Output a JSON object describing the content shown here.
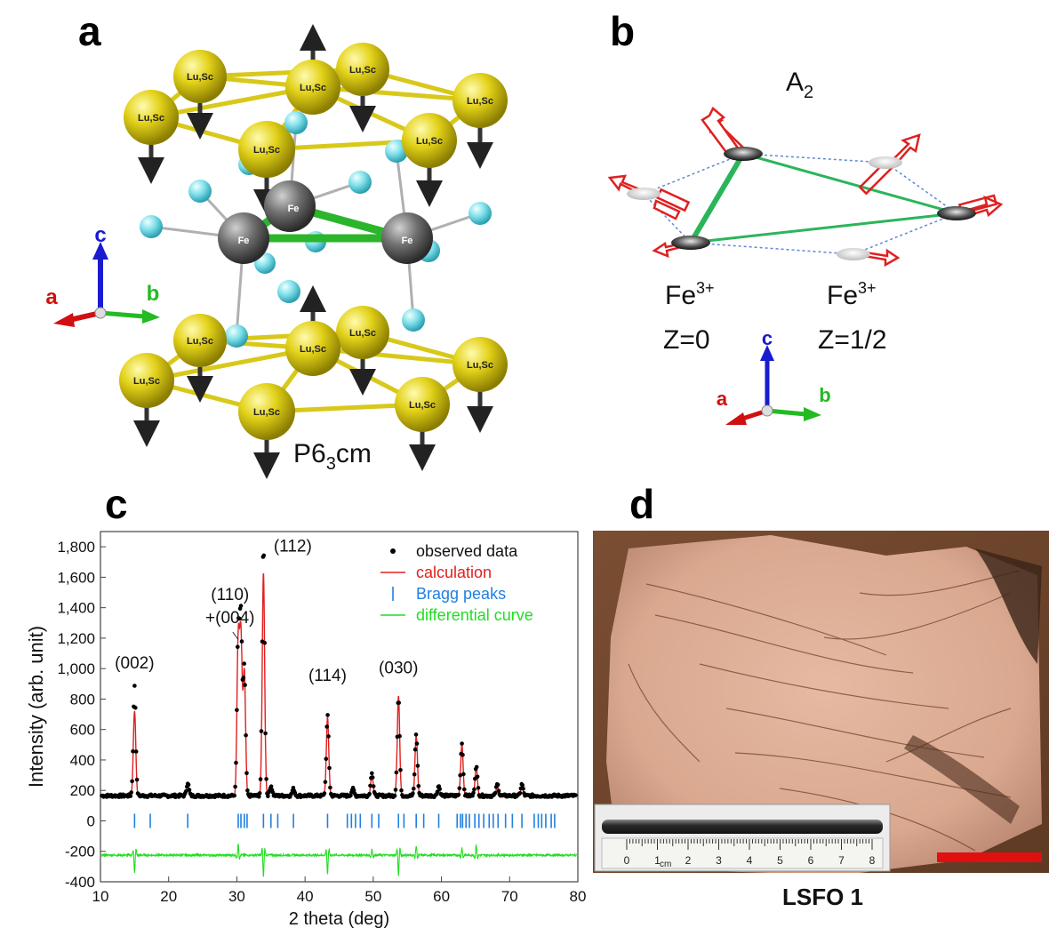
{
  "figure": {
    "panel_a": {
      "letter": "a",
      "atom_lusc": "Lu,Sc",
      "atom_fe": "Fe",
      "space_group_prefix": "P6",
      "space_group_sub": "3",
      "space_group_suffix": "cm",
      "axes": {
        "c": "c",
        "a": "a",
        "b": "b"
      },
      "colors": {
        "lusc": "#e3d21a",
        "fe": "#6e6e6e",
        "oxygen": "#7fe0ea",
        "bond_fe": "#2bb52b",
        "bond_lusc": "#d8c81a"
      }
    },
    "panel_b": {
      "letter": "b",
      "mode_main": "A",
      "mode_sub": "2",
      "fe_z0_ion": "Fe",
      "fe_z0_charge": "3+",
      "fe_z0_z": "Z=0",
      "fe_zhalf_ion": "Fe",
      "fe_zhalf_charge": "3+",
      "fe_zhalf_z": "Z=1/2",
      "axes": {
        "c": "c",
        "a": "a",
        "b": "b"
      },
      "colors": {
        "arrow": "#e02020",
        "bond": "#2bb55a",
        "dash": "#5a8ad8"
      }
    },
    "panel_c": {
      "letter": "c",
      "peak_labels": [
        "(002)",
        "(110)",
        "+(004)",
        "(112)",
        "(114)",
        "(030)"
      ],
      "legend": [
        "observed data",
        "calculation",
        "Bragg peaks",
        "differential curve"
      ]
    },
    "panel_d": {
      "letter": "d",
      "caption": "LSFO 1",
      "ruler_unit": "cm",
      "ruler_ticks": [
        "0",
        "1",
        "2",
        "3",
        "4",
        "5",
        "6",
        "7",
        "8"
      ],
      "scale_bar_color": "#e01010"
    }
  },
  "chart_data": {
    "type": "line",
    "title": "",
    "xlabel": "2 theta (deg)",
    "ylabel": "Intensity (arb. unit)",
    "xlim": [
      10,
      80
    ],
    "ylim": [
      -400,
      1900
    ],
    "xticks": [
      10,
      20,
      30,
      40,
      50,
      60,
      70,
      80
    ],
    "yticks": [
      -400,
      -200,
      0,
      200,
      400,
      600,
      800,
      "1,000",
      "1,200",
      "1,400",
      "1,600",
      "1,800"
    ],
    "legend_position": "top-right",
    "series": [
      {
        "name": "observed data",
        "style": "dots",
        "color": "#000000",
        "background": 165,
        "peaks": [
          [
            15.0,
            890
          ],
          [
            22.8,
            250
          ],
          [
            30.2,
            1200
          ],
          [
            30.6,
            1300
          ],
          [
            31.1,
            1000
          ],
          [
            33.9,
            1830
          ],
          [
            35.0,
            230
          ],
          [
            38.3,
            210
          ],
          [
            43.3,
            690
          ],
          [
            47.0,
            210
          ],
          [
            49.8,
            320
          ],
          [
            53.7,
            810
          ],
          [
            56.3,
            570
          ],
          [
            59.6,
            230
          ],
          [
            63.0,
            510
          ],
          [
            65.1,
            360
          ],
          [
            68.2,
            240
          ],
          [
            71.8,
            240
          ]
        ]
      },
      {
        "name": "calculation",
        "style": "line",
        "color": "#e02020",
        "background": 160,
        "peaks": [
          [
            15.0,
            720
          ],
          [
            22.8,
            230
          ],
          [
            30.2,
            1180
          ],
          [
            30.6,
            1190
          ],
          [
            31.1,
            980
          ],
          [
            33.9,
            1630
          ],
          [
            35.0,
            220
          ],
          [
            38.3,
            200
          ],
          [
            43.3,
            680
          ],
          [
            47.0,
            200
          ],
          [
            49.8,
            300
          ],
          [
            53.7,
            820
          ],
          [
            56.3,
            560
          ],
          [
            59.6,
            220
          ],
          [
            63.0,
            500
          ],
          [
            65.1,
            350
          ],
          [
            68.2,
            230
          ],
          [
            71.8,
            230
          ]
        ]
      },
      {
        "name": "Bragg peaks",
        "style": "ticks",
        "color": "#2080e0",
        "y": 0,
        "x": [
          15.0,
          17.3,
          22.8,
          30.2,
          30.6,
          31.1,
          31.5,
          33.9,
          35.0,
          36.0,
          38.3,
          43.3,
          46.2,
          46.8,
          47.4,
          48.1,
          49.8,
          50.8,
          53.7,
          54.5,
          56.3,
          57.4,
          59.6,
          62.3,
          62.8,
          63.1,
          63.6,
          64.1,
          64.9,
          65.5,
          66.2,
          67.0,
          67.6,
          68.3,
          69.4,
          70.4,
          71.8,
          73.6,
          74.2,
          74.7,
          75.3,
          76.1,
          76.6
        ]
      },
      {
        "name": "differential curve",
        "style": "line",
        "color": "#22dd22",
        "baseline": -225,
        "spikes": [
          [
            15.0,
            -120
          ],
          [
            30.2,
            80
          ],
          [
            33.9,
            -140
          ],
          [
            43.3,
            -130
          ],
          [
            49.8,
            40
          ],
          [
            53.7,
            -140
          ],
          [
            56.3,
            60
          ],
          [
            63.0,
            50
          ],
          [
            65.1,
            70
          ]
        ]
      }
    ]
  }
}
